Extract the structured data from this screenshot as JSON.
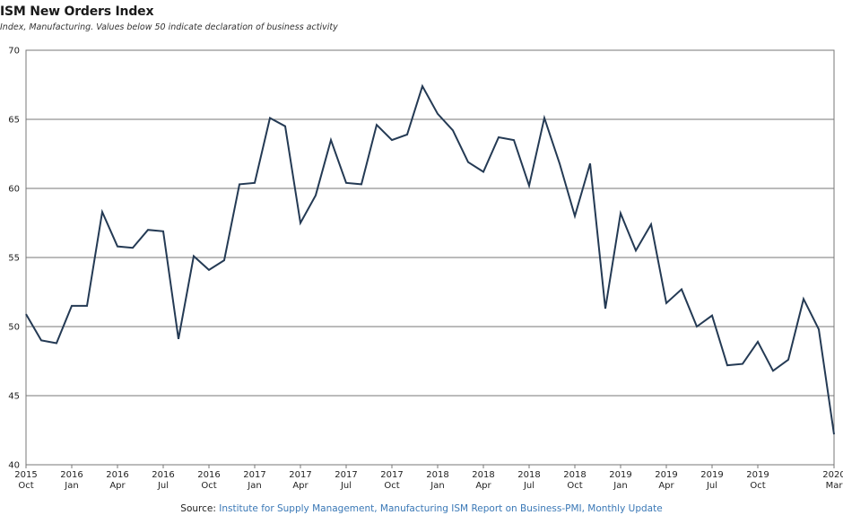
{
  "chart_data": {
    "type": "line",
    "title": "ISM New Orders Index",
    "subtitle": "Index, Manufacturing. Values below 50 indicate declaration of business activity",
    "ylim": [
      40,
      70
    ],
    "yticks": [
      40,
      45,
      50,
      55,
      60,
      65,
      70
    ],
    "grid": true,
    "line_color": "#243a54",
    "x_tick_labels": [
      {
        "year": "2015",
        "month": "Oct",
        "index": 0
      },
      {
        "year": "2016",
        "month": "Jan",
        "index": 3
      },
      {
        "year": "2016",
        "month": "Apr",
        "index": 6
      },
      {
        "year": "2016",
        "month": "Jul",
        "index": 9
      },
      {
        "year": "2016",
        "month": "Oct",
        "index": 12
      },
      {
        "year": "2017",
        "month": "Jan",
        "index": 15
      },
      {
        "year": "2017",
        "month": "Apr",
        "index": 18
      },
      {
        "year": "2017",
        "month": "Jul",
        "index": 21
      },
      {
        "year": "2017",
        "month": "Oct",
        "index": 24
      },
      {
        "year": "2018",
        "month": "Jan",
        "index": 27
      },
      {
        "year": "2018",
        "month": "Apr",
        "index": 30
      },
      {
        "year": "2018",
        "month": "Jul",
        "index": 33
      },
      {
        "year": "2018",
        "month": "Oct",
        "index": 36
      },
      {
        "year": "2019",
        "month": "Jan",
        "index": 39
      },
      {
        "year": "2019",
        "month": "Apr",
        "index": 42
      },
      {
        "year": "2019",
        "month": "Jul",
        "index": 45
      },
      {
        "year": "2019",
        "month": "Oct",
        "index": 48
      },
      {
        "year": "2020",
        "month": "Mar",
        "index": 53
      }
    ],
    "x": [
      "2015-10",
      "2015-11",
      "2015-12",
      "2016-01",
      "2016-02",
      "2016-03",
      "2016-04",
      "2016-05",
      "2016-06",
      "2016-07",
      "2016-08",
      "2016-09",
      "2016-10",
      "2016-11",
      "2016-12",
      "2017-01",
      "2017-02",
      "2017-03",
      "2017-04",
      "2017-05",
      "2017-06",
      "2017-07",
      "2017-08",
      "2017-09",
      "2017-10",
      "2017-11",
      "2017-12",
      "2018-01",
      "2018-02",
      "2018-03",
      "2018-04",
      "2018-05",
      "2018-06",
      "2018-07",
      "2018-08",
      "2018-09",
      "2018-10",
      "2018-11",
      "2018-12",
      "2019-01",
      "2019-02",
      "2019-03",
      "2019-04",
      "2019-05",
      "2019-06",
      "2019-07",
      "2019-08",
      "2019-09",
      "2019-10",
      "2019-11",
      "2019-12",
      "2020-01",
      "2020-02",
      "2020-03"
    ],
    "series": [
      {
        "values": [
          50.9,
          49.0,
          48.8,
          51.5,
          51.5,
          58.3,
          55.8,
          55.7,
          57.0,
          56.9,
          49.1,
          55.1,
          54.1,
          54.8,
          60.3,
          60.4,
          65.1,
          64.5,
          57.5,
          59.5,
          63.5,
          60.4,
          60.3,
          64.6,
          63.5,
          63.9,
          67.4,
          65.4,
          64.2,
          61.9,
          61.2,
          63.7,
          63.5,
          60.2,
          65.1,
          61.8,
          58.0,
          61.8,
          51.3,
          58.2,
          55.5,
          57.4,
          51.7,
          52.7,
          50.0,
          50.8,
          47.2,
          47.3,
          48.9,
          46.8,
          47.6,
          52.0,
          49.8,
          42.2
        ]
      }
    ]
  },
  "source": {
    "prefix": "Source: ",
    "text": "Institute for Supply Management, Manufacturing ISM Report on Business-PMI, Monthly Update"
  }
}
